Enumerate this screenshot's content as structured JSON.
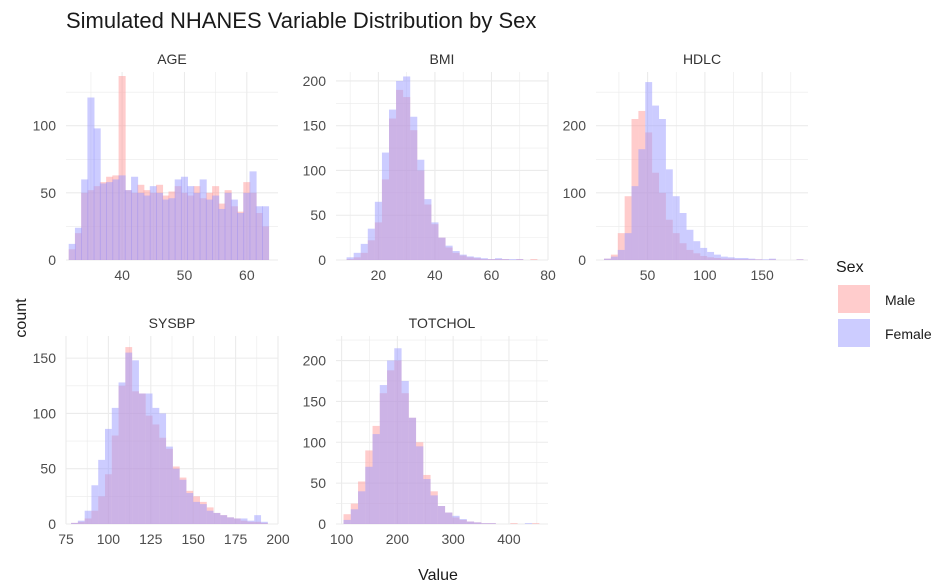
{
  "chart_data": {
    "type": "bar",
    "title": "Simulated NHANES Variable Distribution by Sex",
    "xlabel": "Value",
    "ylabel": "count",
    "legend": {
      "title": "Sex",
      "placement": "right",
      "entries": [
        {
          "name": "Male",
          "color": "#ff9999"
        },
        {
          "name": "Female",
          "color": "#9999ff"
        }
      ]
    },
    "grid": true,
    "colors": {
      "male": "#ff9999",
      "female": "#9999ff",
      "grid": "#ebebeb"
    },
    "opacity": 0.5,
    "panels": [
      {
        "name": "AGE",
        "xlim": [
          31,
          65
        ],
        "ylim": [
          0,
          140
        ],
        "xticks": [
          40,
          50,
          60
        ],
        "yticks": [
          0,
          50,
          100
        ],
        "bins": [
          32,
          33,
          34,
          35,
          36,
          37,
          38,
          39,
          40,
          41,
          42,
          43,
          44,
          45,
          46,
          47,
          48,
          49,
          50,
          51,
          52,
          53,
          54,
          55,
          56,
          57,
          58,
          59,
          60,
          61,
          62,
          63
        ],
        "bin_width": 1.13,
        "series": [
          {
            "name": "Male",
            "values": [
              8,
              20,
              50,
              52,
              55,
              58,
              62,
              63,
              137,
              52,
              50,
              56,
              52,
              50,
              56,
              48,
              51,
              55,
              50,
              48,
              55,
              46,
              50,
              55,
              42,
              52,
              40,
              36,
              58,
              50,
              35,
              25
            ]
          },
          {
            "name": "Female",
            "values": [
              12,
              24,
              60,
              121,
              98,
              57,
              58,
              60,
              63,
              52,
              62,
              50,
              48,
              55,
              50,
              45,
              46,
              60,
              62,
              55,
              50,
              60,
              45,
              48,
              38,
              50,
              45,
              35,
              50,
              66,
              40,
              40
            ]
          }
        ]
      },
      {
        "name": "BMI",
        "xlim": [
          5,
          80
        ],
        "ylim": [
          0,
          210
        ],
        "xticks": [
          20,
          40,
          60,
          80
        ],
        "yticks": [
          0,
          50,
          100,
          150,
          200
        ],
        "bins": [
          10,
          12.5,
          15,
          17.5,
          20,
          22.5,
          25,
          27.5,
          30,
          32.5,
          35,
          37.5,
          40,
          42.5,
          45,
          47.5,
          50,
          52.5,
          55,
          57.5,
          60,
          62.5,
          65,
          67.5,
          70,
          72.5,
          75
        ],
        "bin_width": 2.5,
        "series": [
          {
            "name": "Male",
            "values": [
              1,
              3,
              8,
              22,
              42,
              90,
              158,
              190,
              182,
              145,
              100,
              62,
              40,
              25,
              14,
              8,
              5,
              3,
              2,
              1,
              1,
              1,
              1,
              0,
              1,
              0,
              1
            ]
          },
          {
            "name": "Female",
            "values": [
              3,
              8,
              18,
              35,
              65,
              120,
              168,
              200,
              205,
              160,
              112,
              68,
              42,
              25,
              16,
              10,
              6,
              4,
              3,
              2,
              1,
              2,
              1,
              1,
              1,
              0,
              0
            ]
          }
        ]
      },
      {
        "name": "HDLC",
        "xlim": [
          5,
          190
        ],
        "ylim": [
          0,
          280
        ],
        "xticks": [
          50,
          100,
          150
        ],
        "yticks": [
          0,
          100,
          200
        ],
        "bins": [
          15,
          21,
          27,
          33,
          39,
          45,
          51,
          57,
          63,
          69,
          75,
          81,
          87,
          93,
          99,
          105,
          111,
          117,
          123,
          129,
          135,
          141,
          147,
          153,
          159,
          165,
          171,
          177,
          183
        ],
        "bin_width": 6,
        "series": [
          {
            "name": "Male",
            "values": [
              2,
              8,
              40,
              95,
              210,
              222,
              190,
              130,
              100,
              60,
              40,
              25,
              15,
              10,
              6,
              4,
              3,
              2,
              2,
              1,
              1,
              1,
              1,
              0,
              1,
              0,
              0,
              0,
              1
            ]
          },
          {
            "name": "Female",
            "values": [
              2,
              5,
              15,
              40,
              110,
              165,
              265,
              230,
              210,
              135,
              95,
              70,
              45,
              28,
              18,
              12,
              8,
              5,
              4,
              3,
              3,
              2,
              1,
              1,
              2,
              0,
              0,
              0,
              1
            ]
          }
        ]
      },
      {
        "name": "SYSBP",
        "xlim": [
          75,
          200
        ],
        "ylim": [
          0,
          170
        ],
        "xticks": [
          75,
          100,
          125,
          150,
          175,
          200
        ],
        "yticks": [
          0,
          50,
          100,
          150
        ],
        "bins": [
          80,
          84,
          88,
          92,
          96,
          100,
          104,
          108,
          112,
          116,
          120,
          124,
          128,
          132,
          136,
          140,
          144,
          148,
          152,
          156,
          160,
          164,
          168,
          172,
          176,
          180,
          184,
          188,
          192
        ],
        "bin_width": 4,
        "series": [
          {
            "name": "Male",
            "values": [
              1,
              2,
              5,
              12,
              25,
              45,
              80,
              125,
              160,
              120,
              118,
              98,
              90,
              78,
              68,
              52,
              42,
              30,
              25,
              20,
              15,
              10,
              8,
              6,
              5,
              3,
              2,
              2,
              1
            ]
          },
          {
            "name": "Female",
            "values": [
              1,
              3,
              12,
              35,
              58,
              86,
              105,
              128,
              155,
              148,
              118,
              118,
              105,
              100,
              70,
              50,
              40,
              28,
              20,
              18,
              12,
              10,
              8,
              6,
              5,
              5,
              3,
              8,
              2
            ]
          }
        ]
      },
      {
        "name": "TOTCHOL",
        "xlim": [
          90,
          470
        ],
        "ylim": [
          0,
          230
        ],
        "xticks": [
          100,
          200,
          300,
          400
        ],
        "yticks": [
          0,
          50,
          100,
          150,
          200
        ],
        "bins": [
          110,
          123,
          136,
          149,
          162,
          175,
          188,
          201,
          214,
          227,
          240,
          253,
          266,
          279,
          292,
          305,
          318,
          331,
          344,
          357,
          370,
          383,
          396,
          409,
          422,
          435,
          448
        ],
        "bin_width": 13,
        "series": [
          {
            "name": "Male",
            "values": [
              12,
              25,
              52,
              90,
              120,
              160,
              188,
              200,
              160,
              130,
              100,
              60,
              40,
              22,
              14,
              8,
              5,
              3,
              2,
              1,
              1,
              0,
              0,
              1,
              0,
              0,
              1
            ]
          },
          {
            "name": "Female",
            "values": [
              5,
              18,
              40,
              70,
              110,
              170,
              200,
              215,
              175,
              130,
              95,
              55,
              35,
              22,
              14,
              10,
              6,
              3,
              2,
              1,
              1,
              0,
              0,
              0,
              0,
              1,
              0
            ]
          }
        ]
      }
    ]
  }
}
